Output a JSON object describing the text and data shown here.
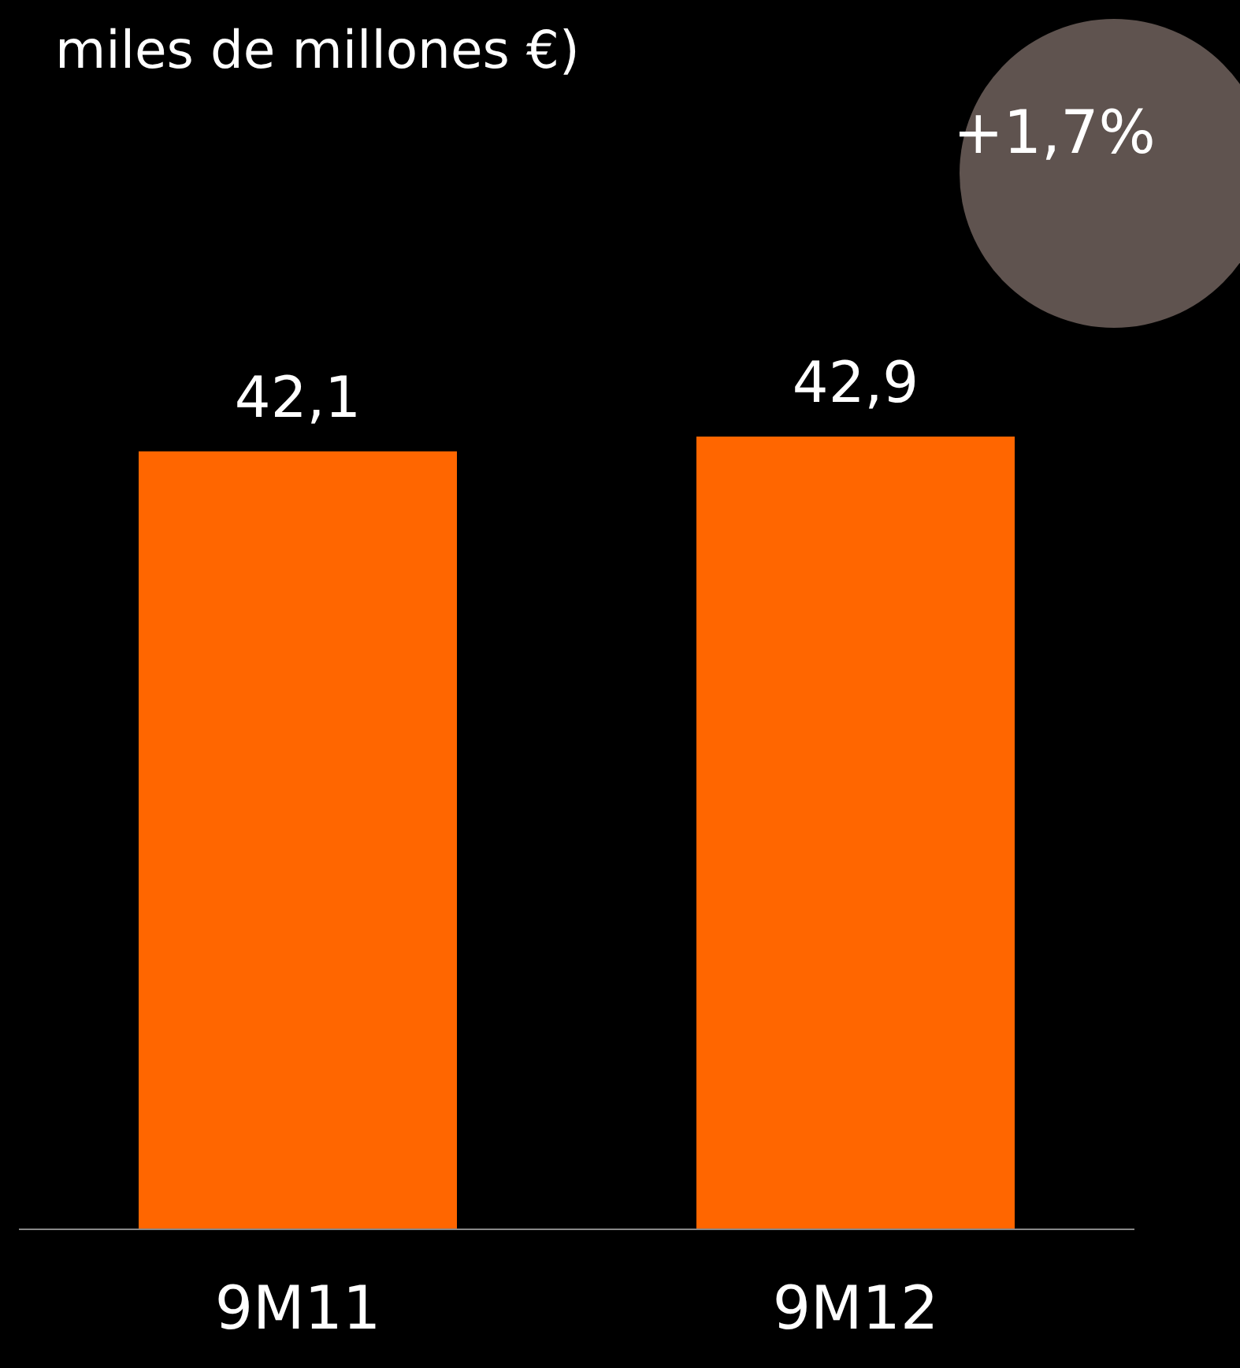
{
  "chart_data": {
    "type": "bar",
    "title": "miles de millones €)",
    "categories": [
      "9M11",
      "9M12"
    ],
    "values": [
      42.1,
      42.9
    ],
    "value_labels": [
      "42,1",
      "42,9"
    ],
    "color": "#ff6600",
    "annotations": [
      "+1,7%"
    ]
  }
}
